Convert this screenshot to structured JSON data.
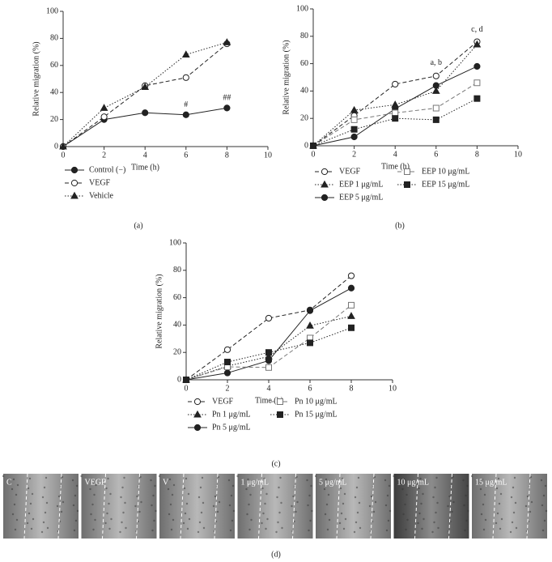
{
  "chart_data": [
    {
      "type": "line",
      "x_label": "Time (h)",
      "y_label": "Relative migration (%)",
      "x": [
        0,
        2,
        4,
        6,
        8
      ],
      "xlim": [
        0,
        10
      ],
      "xticks": [
        0,
        2,
        4,
        6,
        8,
        10
      ],
      "ylim": [
        0,
        100
      ],
      "yticks": [
        0,
        20,
        40,
        60,
        80,
        100
      ],
      "series": [
        {
          "name": "Control (−)",
          "color": "#222",
          "line_style": "solid",
          "marker": "circle-filled",
          "values": [
            0,
            20,
            25,
            23.5,
            28.5
          ]
        },
        {
          "name": "VEGF",
          "color": "#222",
          "line_style": "dashed",
          "marker": "circle-open",
          "values": [
            0,
            22,
            45,
            51,
            76
          ]
        },
        {
          "name": "Vehicle",
          "color": "#222",
          "line_style": "dotted",
          "marker": "triangle-filled",
          "values": [
            0,
            28.5,
            44,
            68,
            77
          ]
        }
      ],
      "annotations": [
        "#",
        "##"
      ],
      "panel_label": "(a)"
    },
    {
      "type": "line",
      "x_label": "Time (h)",
      "y_label": "Relative migration (%)",
      "x": [
        0,
        2,
        4,
        6,
        8
      ],
      "xlim": [
        0,
        10
      ],
      "xticks": [
        0,
        2,
        4,
        6,
        8,
        10
      ],
      "ylim": [
        0,
        100
      ],
      "yticks": [
        0,
        20,
        40,
        60,
        80,
        100
      ],
      "series": [
        {
          "name": "VEGF",
          "color": "#222",
          "line_style": "dashed",
          "marker": "circle-open",
          "values": [
            0,
            22,
            45,
            51,
            76
          ]
        },
        {
          "name": "EEP 1 μg/mL",
          "color": "#222",
          "line_style": "dotted",
          "marker": "triangle-filled",
          "values": [
            0,
            26,
            30,
            40,
            74
          ]
        },
        {
          "name": "EEP 5 μg/mL",
          "color": "#222",
          "line_style": "solid",
          "marker": "circle-filled",
          "values": [
            0,
            6.5,
            27,
            44,
            58
          ]
        },
        {
          "name": "EEP 10 μg/mL",
          "color": "#777",
          "line_style": "dashed",
          "marker": "square-open",
          "values": [
            0,
            19,
            24,
            27.5,
            46
          ]
        },
        {
          "name": "EEP 15 μg/mL",
          "color": "#222",
          "line_style": "dotted",
          "marker": "square-filled",
          "values": [
            0,
            12,
            20,
            19,
            34.5
          ]
        }
      ],
      "annotations": [
        "a, b",
        "c, d"
      ],
      "panel_label": "(b)"
    },
    {
      "type": "line",
      "x_label": "Time (h)",
      "y_label": "Relative migration (%)",
      "x": [
        0,
        2,
        4,
        6,
        8
      ],
      "xlim": [
        0,
        10
      ],
      "xticks": [
        0,
        2,
        4,
        6,
        8,
        10
      ],
      "ylim": [
        0,
        100
      ],
      "yticks": [
        0,
        20,
        40,
        60,
        80,
        100
      ],
      "series": [
        {
          "name": "VEGF",
          "color": "#222",
          "line_style": "dashed",
          "marker": "circle-open",
          "values": [
            0,
            22,
            45,
            51,
            76
          ]
        },
        {
          "name": "Pn 1 μg/mL",
          "color": "#222",
          "line_style": "dotted",
          "marker": "triangle-filled",
          "values": [
            0,
            10,
            17,
            39.5,
            46.5
          ]
        },
        {
          "name": "Pn 5 μg/mL",
          "color": "#222",
          "line_style": "solid",
          "marker": "circle-filled",
          "values": [
            0,
            5,
            14,
            50.5,
            67
          ]
        },
        {
          "name": "Pn 10 μg/mL",
          "color": "#777",
          "line_style": "dashed",
          "marker": "square-open",
          "values": [
            0,
            9.5,
            9,
            30.5,
            54.5
          ]
        },
        {
          "name": "Pn 15 μg/mL",
          "color": "#222",
          "line_style": "dotted",
          "marker": "square-filled",
          "values": [
            0,
            13,
            20,
            27,
            38
          ]
        }
      ],
      "panel_label": "(c)"
    }
  ],
  "images": {
    "labels": [
      "C",
      "VEGF",
      "V",
      "1 μg/mL",
      "5 μg/mL",
      "10 μg/mL",
      "15 μg/mL"
    ],
    "panel_label": "(d)"
  }
}
